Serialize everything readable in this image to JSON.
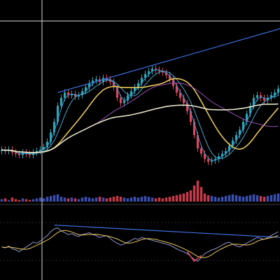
{
  "chart_data": {
    "type": "candlestick",
    "title": "",
    "xlabel": "",
    "ylabel": "",
    "grid": false,
    "legend": "none",
    "theme": "dark",
    "price": {
      "x": [
        1,
        2,
        3,
        4,
        5,
        6,
        7,
        8,
        9,
        10,
        11,
        12,
        13,
        14,
        15,
        16,
        17,
        18,
        19,
        20,
        21,
        22,
        23,
        24,
        25,
        26,
        27,
        28,
        29,
        30,
        31,
        32,
        33,
        34,
        35,
        36,
        37,
        38,
        39,
        40,
        41,
        42,
        43,
        44,
        45,
        46,
        47,
        48,
        49,
        50,
        51,
        52,
        53,
        54,
        55,
        56,
        57,
        58,
        59,
        60,
        61,
        62,
        63,
        64,
        65,
        66,
        67,
        68,
        69,
        70,
        71,
        72,
        73,
        74,
        75,
        76,
        77,
        78,
        79,
        80
      ],
      "close": [
        19,
        18,
        19,
        17,
        16,
        15,
        17,
        16,
        15,
        17,
        18,
        19,
        21,
        25,
        32,
        40,
        52,
        58,
        62,
        60,
        61,
        59,
        60,
        63,
        66,
        69,
        71,
        72,
        70,
        73,
        72,
        70,
        66,
        58,
        54,
        56,
        60,
        63,
        66,
        69,
        73,
        76,
        78,
        80,
        79,
        78,
        77,
        75,
        72,
        67,
        62,
        58,
        54,
        48,
        40,
        30,
        20,
        16,
        12,
        10,
        11,
        12,
        14,
        16,
        18,
        22,
        26,
        30,
        34,
        40,
        46,
        52,
        58,
        60,
        58,
        56,
        58,
        60,
        62,
        65
      ],
      "ylim": [
        0,
        100
      ]
    },
    "moving_averages": [
      {
        "key": "fast",
        "color": "#2f9bd6"
      },
      {
        "key": "mid",
        "color": "#4aa6c9"
      },
      {
        "key": "slow",
        "color": "#e8c75a"
      },
      {
        "key": "long",
        "color": "#9a4fb5"
      },
      {
        "key": "longest",
        "color": "#e6e2c8"
      }
    ],
    "trendlines": [
      {
        "key": "price-trend",
        "color": "#3f6fe0"
      },
      {
        "key": "osc-trend",
        "color": "#3f6fe0"
      }
    ],
    "volume": {
      "values": [
        3,
        4,
        2,
        5,
        3,
        2,
        4,
        3,
        2,
        3,
        4,
        5,
        4,
        6,
        7,
        8,
        9,
        6,
        5,
        4,
        5,
        4,
        3,
        5,
        6,
        5,
        4,
        5,
        6,
        5,
        4,
        5,
        6,
        7,
        6,
        5,
        4,
        5,
        6,
        5,
        6,
        7,
        6,
        5,
        4,
        5,
        4,
        5,
        6,
        7,
        8,
        9,
        10,
        12,
        14,
        20,
        26,
        18,
        10,
        8,
        7,
        6,
        5,
        6,
        7,
        8,
        9,
        8,
        7,
        6,
        7,
        8,
        9,
        8,
        7,
        6,
        7,
        8,
        9,
        10
      ]
    },
    "oscillator": {
      "values": [
        40,
        38,
        42,
        36,
        34,
        30,
        35,
        40,
        45,
        50,
        48,
        52,
        58,
        64,
        72,
        78,
        80,
        74,
        70,
        66,
        68,
        64,
        62,
        66,
        68,
        70,
        66,
        64,
        60,
        62,
        64,
        58,
        52,
        48,
        44,
        46,
        50,
        54,
        58,
        56,
        60,
        58,
        56,
        54,
        52,
        50,
        48,
        46,
        44,
        40,
        36,
        32,
        30,
        26,
        20,
        14,
        10,
        18,
        26,
        30,
        34,
        36,
        40,
        44,
        48,
        50,
        46,
        42,
        40,
        44,
        48,
        52,
        56,
        60,
        58,
        56,
        60,
        64,
        68,
        72
      ],
      "ylim": [
        0,
        100
      ]
    },
    "colors": {
      "up": "#2fa4b5",
      "down": "#e0455a",
      "volume_up": "#3b4fb0",
      "volume_down": "#c53a4a",
      "crosshair": "#d8d8d8",
      "panel_divider": "#3a3a3a",
      "osc_line": "#8f95c8",
      "osc_signal": "#e8c75a"
    }
  }
}
